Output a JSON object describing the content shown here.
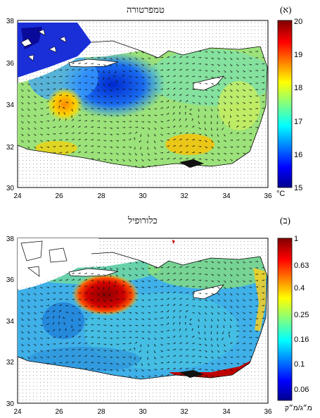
{
  "panels": [
    {
      "letter": "(א)",
      "title": "טמפרטורה",
      "unit": "°C",
      "colorbar_ticks": [
        "20",
        "19",
        "18",
        "17",
        "16",
        "15"
      ],
      "lat_ticks": [
        "38",
        "36",
        "34",
        "32",
        "30"
      ],
      "lon_ticks": [
        "24",
        "26",
        "28",
        "30",
        "32",
        "34",
        "36"
      ]
    },
    {
      "letter": "(ב)",
      "title": "כלורופיל",
      "unit": "מ״ג/מ״ק",
      "colorbar_ticks": [
        "1",
        "0.63",
        "0.4",
        "0.25",
        "0.16",
        "0.1",
        "0.06"
      ],
      "lat_ticks": [
        "38",
        "36",
        "34",
        "32",
        "30"
      ],
      "lon_ticks": [
        "24",
        "26",
        "28",
        "30",
        "32",
        "34",
        "36"
      ]
    }
  ],
  "colors": {
    "jet": [
      "#00008f",
      "#0000ff",
      "#0080ff",
      "#00ffff",
      "#80ff80",
      "#ffff00",
      "#ff8000",
      "#ff0000",
      "#800000"
    ]
  }
}
